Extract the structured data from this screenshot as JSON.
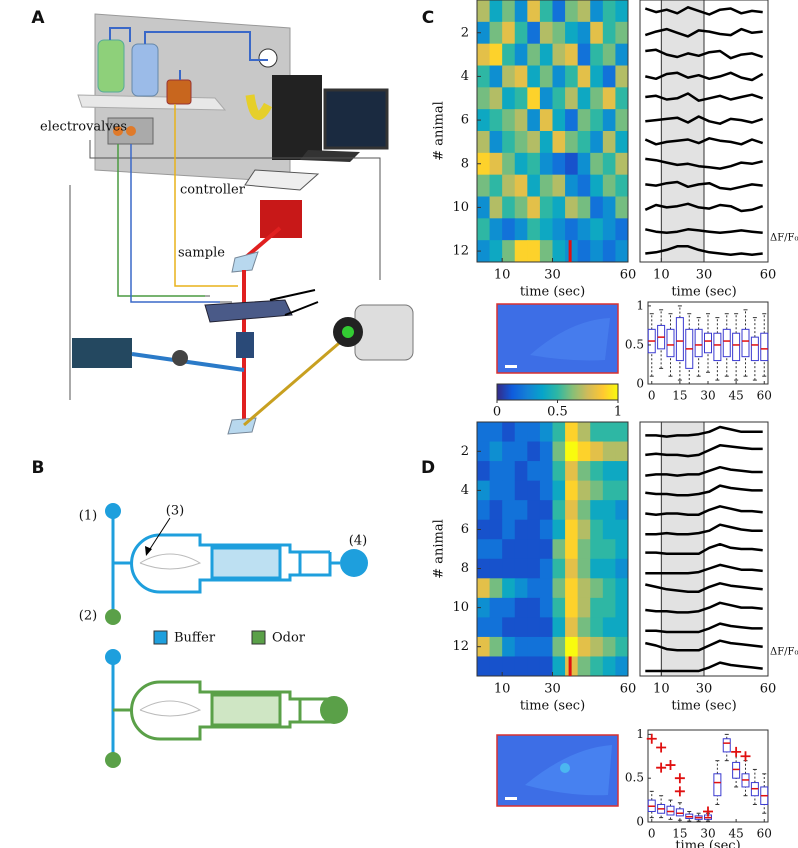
{
  "panel_labels": [
    "A",
    "B",
    "C",
    "D"
  ],
  "setup": {
    "electrovalves": "electrovalves",
    "controller": "controller",
    "sample": "sample"
  },
  "chip": {
    "inlets": [
      "(1)",
      "(2)",
      "(3)",
      "(4)"
    ],
    "legend": [
      {
        "label": "Buffer",
        "color": "#1e9fdd"
      },
      {
        "label": "Odor",
        "color": "#5aa048"
      }
    ]
  },
  "chart_data": [
    {
      "type": "heatmap",
      "xlabel": "time (sec)",
      "ylabel": "# animal",
      "xlim": [
        0,
        60
      ],
      "xticks": [
        10,
        30,
        60
      ],
      "yticks": [
        2,
        4,
        6,
        8,
        10,
        12
      ],
      "marker_x": 37,
      "marker_color": "#e01010",
      "z": [
        [
          0.7,
          0.4,
          0.6,
          0.3,
          0.8,
          0.5,
          0.2,
          0.6,
          0.7,
          0.3,
          0.5,
          0.4
        ],
        [
          0.3,
          0.6,
          0.8,
          0.5,
          0.2,
          0.7,
          0.6,
          0.4,
          0.3,
          0.8,
          0.5,
          0.6
        ],
        [
          0.8,
          0.9,
          0.5,
          0.3,
          0.6,
          0.4,
          0.7,
          0.8,
          0.2,
          0.5,
          0.6,
          0.3
        ],
        [
          0.5,
          0.3,
          0.7,
          0.8,
          0.4,
          0.6,
          0.3,
          0.5,
          0.8,
          0.4,
          0.2,
          0.7
        ],
        [
          0.6,
          0.7,
          0.4,
          0.5,
          0.9,
          0.3,
          0.5,
          0.7,
          0.4,
          0.6,
          0.8,
          0.5
        ],
        [
          0.4,
          0.5,
          0.6,
          0.7,
          0.3,
          0.8,
          0.4,
          0.2,
          0.6,
          0.5,
          0.3,
          0.6
        ],
        [
          0.7,
          0.3,
          0.5,
          0.6,
          0.7,
          0.4,
          0.8,
          0.6,
          0.5,
          0.3,
          0.7,
          0.4
        ],
        [
          0.9,
          0.8,
          0.6,
          0.4,
          0.5,
          0.3,
          0.2,
          0.1,
          0.3,
          0.6,
          0.5,
          0.7
        ],
        [
          0.6,
          0.5,
          0.7,
          0.8,
          0.4,
          0.6,
          0.7,
          0.3,
          0.2,
          0.4,
          0.6,
          0.5
        ],
        [
          0.3,
          0.7,
          0.5,
          0.6,
          0.8,
          0.5,
          0.4,
          0.7,
          0.6,
          0.2,
          0.3,
          0.6
        ],
        [
          0.5,
          0.3,
          0.2,
          0.3,
          0.5,
          0.4,
          0.3,
          0.2,
          0.3,
          0.4,
          0.3,
          0.2
        ],
        [
          0.3,
          0.4,
          0.6,
          0.9,
          0.9,
          0.6,
          0.4,
          0.3,
          0.2,
          0.3,
          0.2,
          0.3
        ]
      ]
    },
    {
      "type": "line",
      "xlabel": "time (sec)",
      "ylabel": "ΔF/F₀",
      "xlim": [
        0,
        60
      ],
      "xticks": [
        10,
        30,
        60
      ],
      "shade": [
        10,
        30
      ]
    },
    {
      "type": "box",
      "xlim": [
        -2,
        62
      ],
      "ylim": [
        0,
        1.05
      ],
      "xticks": [
        0,
        15,
        30,
        45,
        60
      ],
      "yticks": [
        0,
        0.5,
        1
      ],
      "boxes": [
        {
          "x": 0,
          "stats": [
            0.1,
            0.4,
            0.55,
            0.7,
            0.9
          ]
        },
        {
          "x": 5,
          "stats": [
            0.2,
            0.45,
            0.6,
            0.75,
            0.95
          ]
        },
        {
          "x": 10,
          "stats": [
            0.1,
            0.35,
            0.5,
            0.7,
            0.9
          ]
        },
        {
          "x": 15,
          "stats": [
            0.05,
            0.3,
            0.55,
            0.85,
            1.0
          ]
        },
        {
          "x": 20,
          "stats": [
            0.0,
            0.2,
            0.45,
            0.7,
            0.9
          ]
        },
        {
          "x": 25,
          "stats": [
            0.1,
            0.35,
            0.5,
            0.7,
            0.85
          ]
        },
        {
          "x": 30,
          "stats": [
            0.15,
            0.4,
            0.55,
            0.65,
            0.9
          ]
        },
        {
          "x": 35,
          "stats": [
            0.05,
            0.3,
            0.5,
            0.65,
            0.85
          ]
        },
        {
          "x": 40,
          "stats": [
            0.1,
            0.35,
            0.55,
            0.7,
            0.9
          ]
        },
        {
          "x": 45,
          "stats": [
            0.05,
            0.3,
            0.5,
            0.65,
            0.9
          ]
        },
        {
          "x": 50,
          "stats": [
            0.1,
            0.35,
            0.55,
            0.7,
            0.95
          ]
        },
        {
          "x": 55,
          "stats": [
            0.05,
            0.3,
            0.5,
            0.6,
            0.85
          ]
        },
        {
          "x": 60,
          "stats": [
            0.1,
            0.3,
            0.45,
            0.65,
            0.9
          ]
        }
      ],
      "median_color": "#e01010",
      "box_color": "#3a3ad0"
    },
    {
      "type": "colorbar",
      "lim": [
        0,
        1
      ],
      "ticks": [
        0,
        0.5,
        1
      ],
      "colormap": [
        "#352a87",
        "#0f5cdd",
        "#1481d6",
        "#06a4ca",
        "#2eb7a4",
        "#87bf77",
        "#d1bb59",
        "#fec832",
        "#f9fb0e"
      ]
    },
    {
      "type": "heatmap",
      "xlabel": "time (sec)",
      "ylabel": "# animal",
      "xlim": [
        0,
        60
      ],
      "xticks": [
        10,
        30,
        60
      ],
      "yticks": [
        2,
        4,
        6,
        8,
        10,
        12
      ],
      "marker_x": 37,
      "marker_color": "#e01010",
      "z": [
        [
          0.2,
          0.2,
          0.1,
          0.2,
          0.2,
          0.3,
          0.5,
          0.9,
          0.7,
          0.5,
          0.5,
          0.5
        ],
        [
          0.2,
          0.3,
          0.2,
          0.2,
          0.1,
          0.2,
          0.6,
          1.0,
          0.9,
          0.8,
          0.7,
          0.7
        ],
        [
          0.1,
          0.2,
          0.2,
          0.1,
          0.2,
          0.2,
          0.5,
          0.8,
          0.6,
          0.5,
          0.4,
          0.4
        ],
        [
          0.3,
          0.2,
          0.2,
          0.1,
          0.1,
          0.2,
          0.4,
          0.9,
          0.7,
          0.6,
          0.5,
          0.5
        ],
        [
          0.2,
          0.1,
          0.2,
          0.2,
          0.1,
          0.1,
          0.5,
          0.8,
          0.6,
          0.4,
          0.4,
          0.3
        ],
        [
          0.1,
          0.1,
          0.2,
          0.1,
          0.1,
          0.2,
          0.4,
          0.9,
          0.7,
          0.5,
          0.4,
          0.4
        ],
        [
          0.2,
          0.2,
          0.1,
          0.1,
          0.1,
          0.1,
          0.6,
          0.9,
          0.6,
          0.5,
          0.5,
          0.4
        ],
        [
          0.1,
          0.1,
          0.1,
          0.1,
          0.1,
          0.2,
          0.5,
          0.8,
          0.6,
          0.4,
          0.4,
          0.3
        ],
        [
          0.8,
          0.6,
          0.4,
          0.3,
          0.2,
          0.2,
          0.6,
          0.9,
          0.7,
          0.6,
          0.5,
          0.4
        ],
        [
          0.3,
          0.2,
          0.2,
          0.1,
          0.1,
          0.2,
          0.5,
          0.9,
          0.7,
          0.5,
          0.5,
          0.4
        ],
        [
          0.2,
          0.2,
          0.1,
          0.1,
          0.1,
          0.1,
          0.4,
          0.8,
          0.6,
          0.5,
          0.4,
          0.4
        ],
        [
          0.8,
          0.6,
          0.3,
          0.2,
          0.2,
          0.2,
          0.6,
          1.0,
          0.8,
          0.7,
          0.6,
          0.5
        ],
        [
          0.1,
          0.1,
          0.1,
          0.1,
          0.1,
          0.1,
          0.4,
          0.8,
          0.6,
          0.5,
          0.4,
          0.3
        ]
      ]
    },
    {
      "type": "line",
      "xlabel": "time (sec)",
      "ylabel": "ΔF/F₀",
      "xlim": [
        0,
        60
      ],
      "xticks": [
        10,
        30,
        60
      ],
      "shade": [
        10,
        30
      ]
    },
    {
      "type": "box",
      "xlabel": "time (sec)",
      "xlim": [
        -2,
        62
      ],
      "ylim": [
        0,
        1.05
      ],
      "xticks": [
        0,
        15,
        30,
        45,
        60
      ],
      "yticks": [
        0,
        0.5,
        1
      ],
      "boxes": [
        {
          "x": 0,
          "stats": [
            0.05,
            0.12,
            0.18,
            0.25,
            0.35
          ]
        },
        {
          "x": 5,
          "stats": [
            0.05,
            0.1,
            0.15,
            0.2,
            0.3
          ]
        },
        {
          "x": 10,
          "stats": [
            0.03,
            0.08,
            0.12,
            0.18,
            0.25
          ]
        },
        {
          "x": 15,
          "stats": [
            0.02,
            0.07,
            0.1,
            0.15,
            0.22
          ]
        },
        {
          "x": 20,
          "stats": [
            0.01,
            0.04,
            0.06,
            0.09,
            0.12
          ]
        },
        {
          "x": 25,
          "stats": [
            0.01,
            0.03,
            0.05,
            0.07,
            0.1
          ]
        },
        {
          "x": 30,
          "stats": [
            0.01,
            0.03,
            0.05,
            0.08,
            0.1
          ]
        },
        {
          "x": 35,
          "stats": [
            0.2,
            0.3,
            0.45,
            0.55,
            0.7
          ]
        },
        {
          "x": 40,
          "stats": [
            0.7,
            0.8,
            0.9,
            0.95,
            1.0
          ]
        },
        {
          "x": 45,
          "stats": [
            0.4,
            0.5,
            0.6,
            0.68,
            0.8
          ]
        },
        {
          "x": 50,
          "stats": [
            0.3,
            0.4,
            0.48,
            0.55,
            0.7
          ]
        },
        {
          "x": 55,
          "stats": [
            0.2,
            0.3,
            0.38,
            0.45,
            0.6
          ]
        },
        {
          "x": 60,
          "stats": [
            0.1,
            0.2,
            0.3,
            0.4,
            0.55
          ]
        }
      ],
      "outliers": [
        {
          "x": 0,
          "y": 0.95
        },
        {
          "x": 5,
          "y": 0.85
        },
        {
          "x": 5,
          "y": 0.62
        },
        {
          "x": 10,
          "y": 0.65
        },
        {
          "x": 15,
          "y": 0.5
        },
        {
          "x": 15,
          "y": 0.35
        },
        {
          "x": 30,
          "y": 0.12
        },
        {
          "x": 45,
          "y": 0.8
        },
        {
          "x": 50,
          "y": 0.75
        }
      ],
      "outlier_color": "#e01010",
      "median_color": "#e01010",
      "box_color": "#3a3ad0"
    }
  ]
}
